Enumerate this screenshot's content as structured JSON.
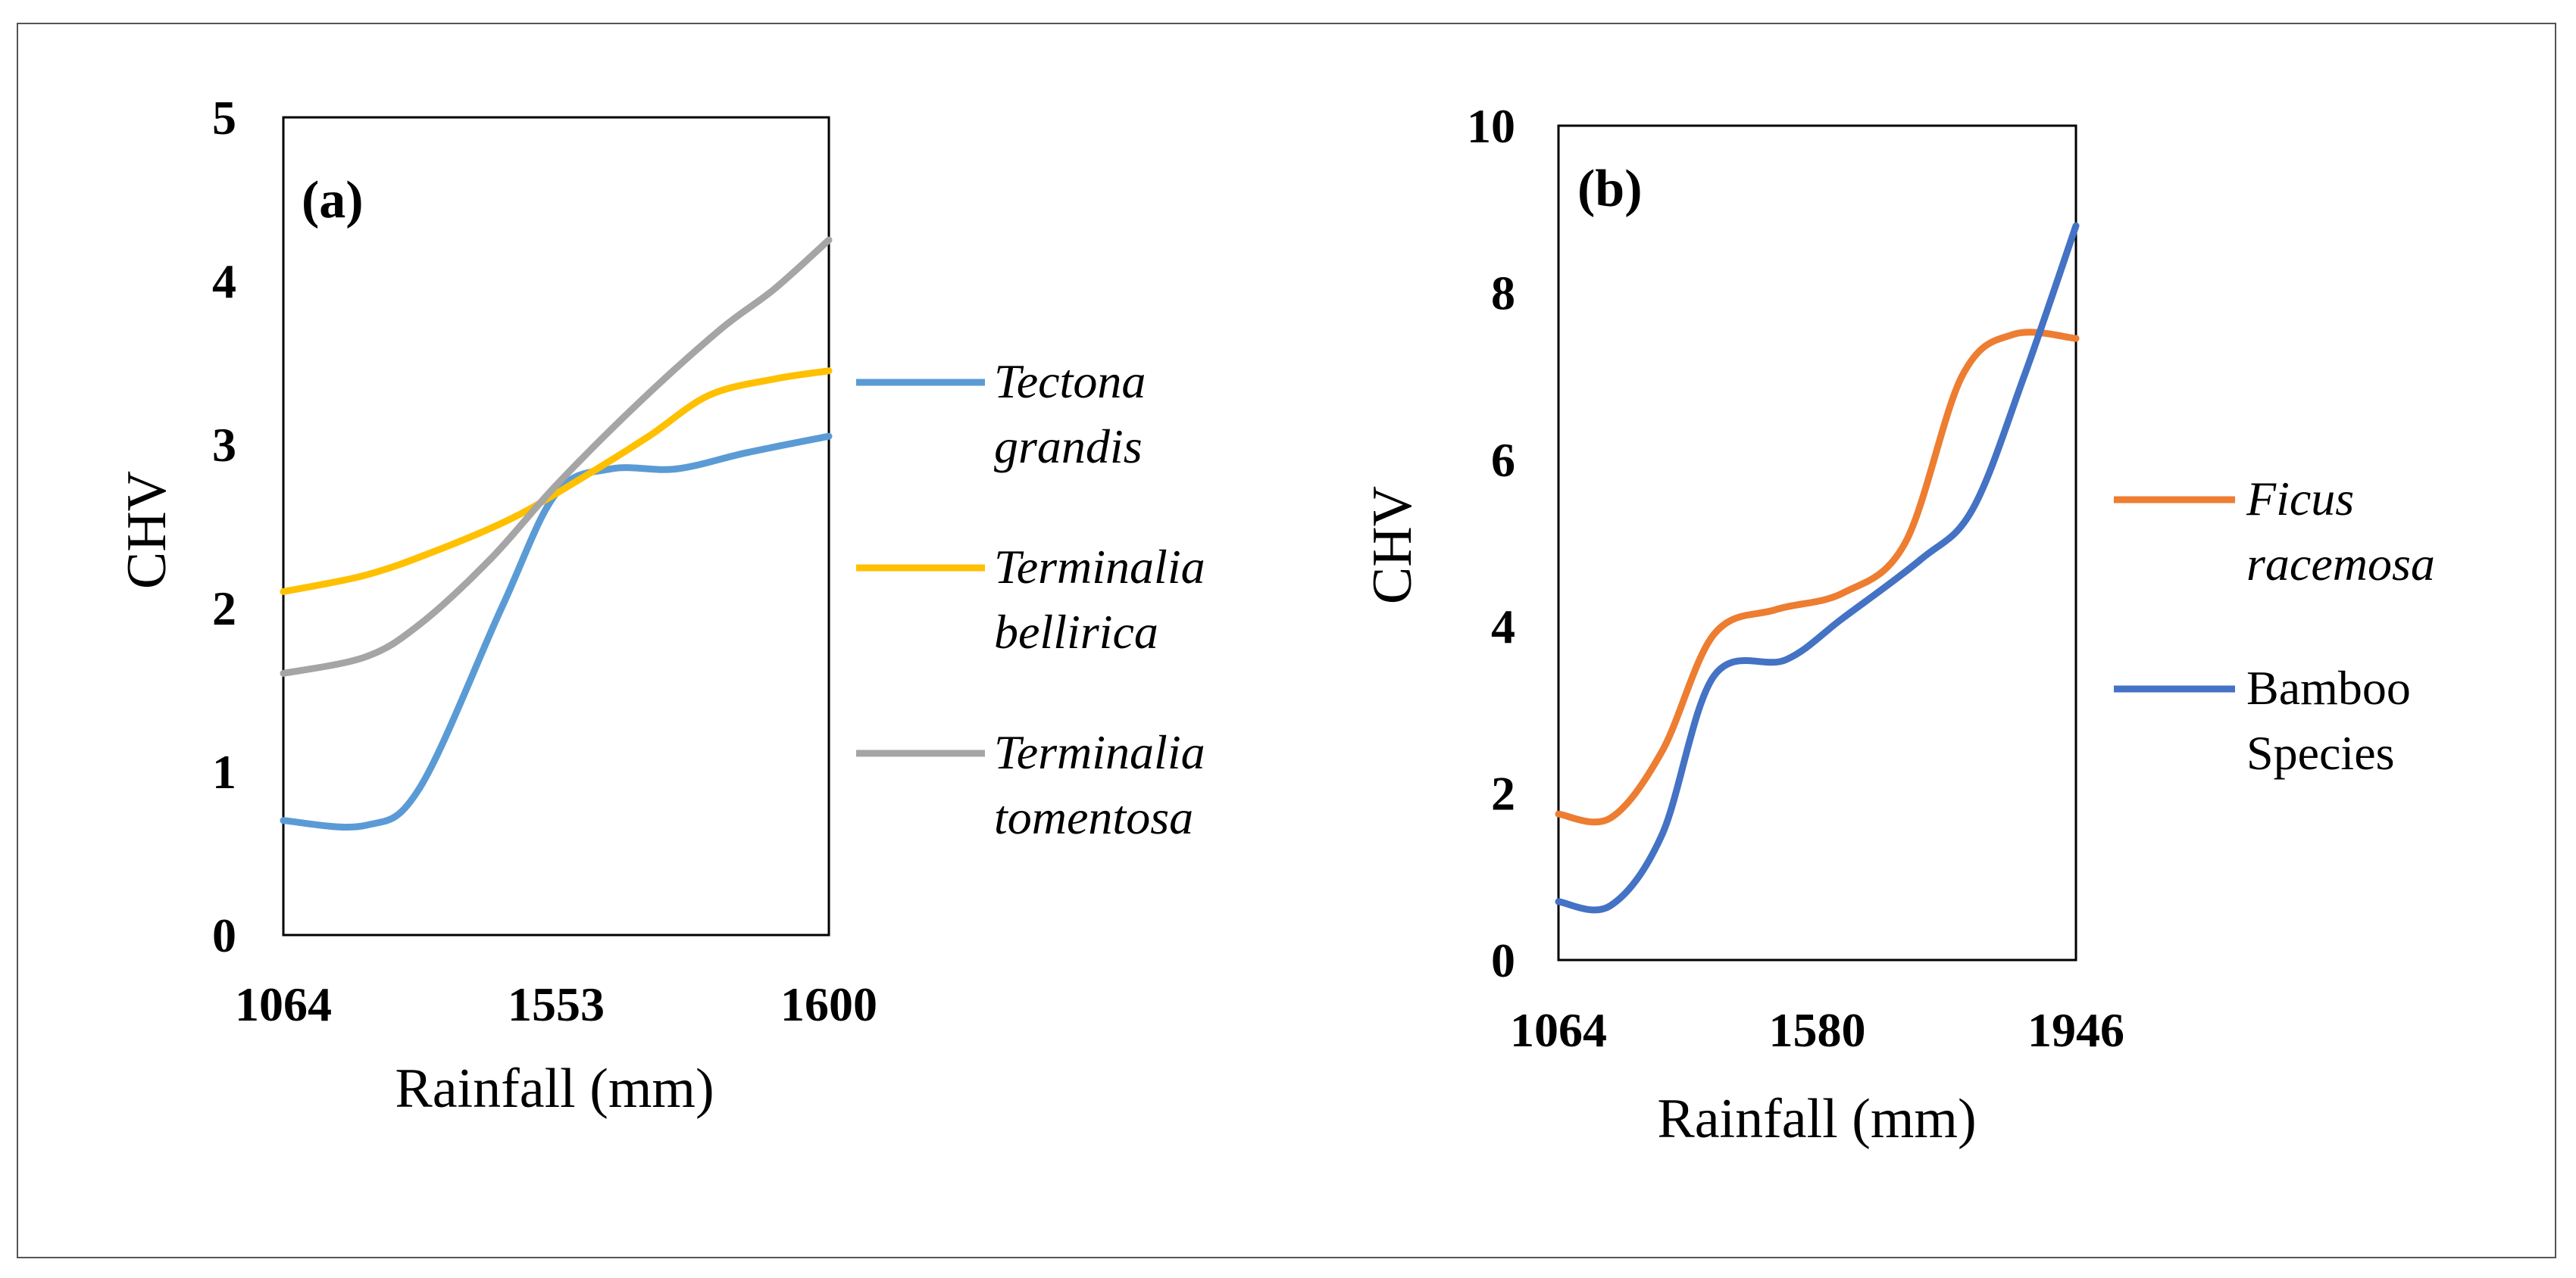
{
  "chart_data": [
    {
      "type": "line",
      "panel_label": "(a)",
      "title": "",
      "xlabel": "Rainfall (mm)",
      "ylabel": "CHV",
      "categories": [
        "1064",
        "1553",
        "1600"
      ],
      "ylim": [
        0,
        5
      ],
      "yticks": [
        "0",
        "1",
        "2",
        "3",
        "4",
        "5"
      ],
      "grid": false,
      "legend_position": "right",
      "series": [
        {
          "name": "Tectona grandis",
          "legend_lines": [
            "Tectona",
            "grandis"
          ],
          "color": "#5B9BD5",
          "points": [
            [
              0,
              0.7
            ],
            [
              0.15,
              0.67
            ],
            [
              0.25,
              0.9
            ],
            [
              0.4,
              2.0
            ],
            [
              0.5,
              2.7
            ],
            [
              0.6,
              2.85
            ],
            [
              0.72,
              2.85
            ],
            [
              0.85,
              2.95
            ],
            [
              1.0,
              3.05
            ]
          ]
        },
        {
          "name": "Terminalia bellirica",
          "legend_lines": [
            "Terminalia",
            "bellirica"
          ],
          "color": "#FFC000",
          "points": [
            [
              0,
              2.1
            ],
            [
              0.15,
              2.2
            ],
            [
              0.28,
              2.35
            ],
            [
              0.42,
              2.55
            ],
            [
              0.55,
              2.8
            ],
            [
              0.67,
              3.05
            ],
            [
              0.78,
              3.3
            ],
            [
              0.9,
              3.4
            ],
            [
              1.0,
              3.45
            ]
          ]
        },
        {
          "name": "Terminalia tomentosa",
          "legend_lines": [
            "Terminalia",
            "tomentosa"
          ],
          "color": "#A5A5A5",
          "points": [
            [
              0,
              1.6
            ],
            [
              0.15,
              1.7
            ],
            [
              0.25,
              1.9
            ],
            [
              0.38,
              2.3
            ],
            [
              0.5,
              2.75
            ],
            [
              0.65,
              3.25
            ],
            [
              0.8,
              3.7
            ],
            [
              0.9,
              3.95
            ],
            [
              1.0,
              4.25
            ]
          ]
        }
      ]
    },
    {
      "type": "line",
      "panel_label": "(b)",
      "title": "",
      "xlabel": "Rainfall (mm)",
      "ylabel": "CHV",
      "categories": [
        "1064",
        "1580",
        "1946"
      ],
      "ylim": [
        0,
        10
      ],
      "yticks": [
        "0",
        "2",
        "4",
        "6",
        "8",
        "10"
      ],
      "grid": false,
      "legend_position": "right",
      "series": [
        {
          "name": "Ficus racemosa",
          "legend_lines": [
            "Ficus",
            "racemosa"
          ],
          "color": "#ED7D31",
          "points": [
            [
              0,
              1.75
            ],
            [
              0.1,
              1.7
            ],
            [
              0.2,
              2.5
            ],
            [
              0.3,
              3.9
            ],
            [
              0.42,
              4.2
            ],
            [
              0.55,
              4.4
            ],
            [
              0.67,
              5.0
            ],
            [
              0.78,
              7.0
            ],
            [
              0.88,
              7.5
            ],
            [
              1.0,
              7.45
            ]
          ]
        },
        {
          "name": "Bamboo Species",
          "legend_lines": [
            "Bamboo",
            "Species"
          ],
          "color": "#4472C4",
          "points": [
            [
              0,
              0.7
            ],
            [
              0.1,
              0.65
            ],
            [
              0.2,
              1.5
            ],
            [
              0.3,
              3.4
            ],
            [
              0.44,
              3.6
            ],
            [
              0.55,
              4.1
            ],
            [
              0.7,
              4.8
            ],
            [
              0.8,
              5.4
            ],
            [
              0.9,
              7.0
            ],
            [
              1.0,
              8.8
            ]
          ]
        }
      ]
    }
  ]
}
